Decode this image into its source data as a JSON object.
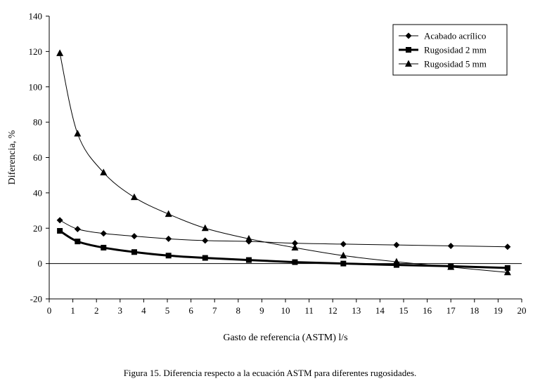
{
  "chart_data": {
    "type": "line",
    "title": "",
    "xlabel": "Gasto de referencia (ASTM) l/s",
    "ylabel": "Diferencia, %",
    "xlim": [
      0,
      20
    ],
    "ylim": [
      -20,
      140
    ],
    "xticks": [
      "0",
      "1",
      "2",
      "3",
      "4",
      "5",
      "6",
      "7",
      "8",
      "9",
      "10",
      "11",
      "12",
      "13",
      "14",
      "15",
      "16",
      "17",
      "18",
      "19",
      "20"
    ],
    "yticks": [
      "-20",
      "0",
      "20",
      "40",
      "60",
      "80",
      "100",
      "120",
      "140"
    ],
    "grid": false,
    "legend_position": "top-right",
    "series": [
      {
        "name": "Acabado acrílico",
        "marker": "diamond",
        "color": "#000000",
        "x": [
          0.45,
          1.2,
          2.3,
          3.6,
          5.05,
          6.6,
          8.45,
          10.4,
          12.45,
          14.7,
          17.0,
          19.4
        ],
        "y": [
          24.5,
          19.5,
          17,
          15.5,
          14,
          13,
          12.5,
          11.5,
          11,
          10.5,
          10,
          9.5
        ]
      },
      {
        "name": "Rugosidad 2 mm",
        "marker": "square",
        "color": "#000000",
        "x": [
          0.45,
          1.2,
          2.3,
          3.6,
          5.05,
          6.6,
          8.45,
          10.4,
          12.45,
          14.7,
          17.0,
          19.4
        ],
        "y": [
          18.5,
          12.5,
          9,
          6.5,
          4.5,
          3.2,
          2,
          0.8,
          0,
          -0.8,
          -1.5,
          -2.5
        ]
      },
      {
        "name": "Rugosidad 5 mm",
        "marker": "triangle",
        "color": "#000000",
        "x": [
          0.45,
          1.2,
          2.3,
          3.6,
          5.05,
          6.6,
          8.45,
          10.4,
          12.45,
          14.7,
          17.0,
          19.4
        ],
        "y": [
          119,
          73.5,
          51.5,
          37.5,
          28,
          20,
          14,
          9,
          4.5,
          1,
          -2,
          -5
        ]
      }
    ]
  },
  "caption": "Figura 15. Diferencia respecto a la ecuación ASTM para diferentes rugosidades."
}
